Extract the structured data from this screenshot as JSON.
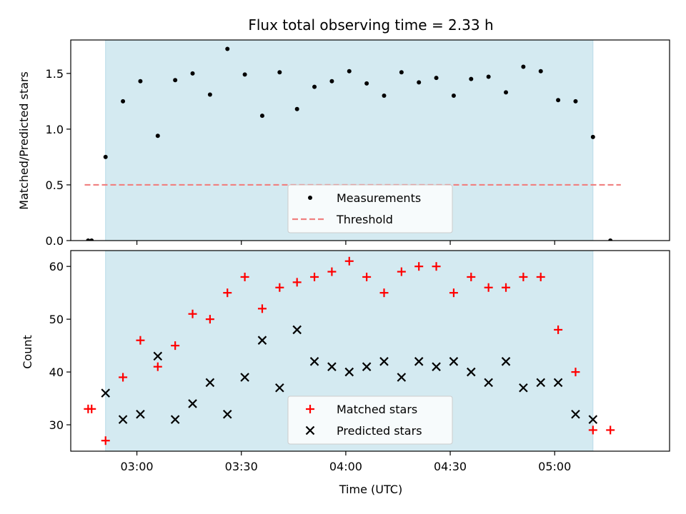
{
  "chart_data": [
    {
      "type": "scatter",
      "title": "Flux total observing time = 2.33 h",
      "xlabel": "",
      "ylabel": "Matched/Predicted stars",
      "xlim": [
        "02:41",
        "05:33"
      ],
      "ylim": [
        0,
        1.8
      ],
      "yticks": [
        "0.0",
        "0.5",
        "1.0",
        "1.5"
      ],
      "xticks": [
        "03:00",
        "03:30",
        "04:00",
        "04:30",
        "05:00"
      ],
      "shaded_span": [
        "02:51",
        "05:11"
      ],
      "shade_color": "#d4eaf1",
      "threshold": {
        "name": "Threshold",
        "value": 0.5,
        "x_range": [
          "02:45",
          "05:19"
        ],
        "color": "#f08080"
      },
      "legend": {
        "placement": "lower center",
        "entries": [
          "Measurements",
          "Threshold"
        ]
      },
      "series": [
        {
          "name": "Measurements",
          "marker": "dot",
          "color": "#000000",
          "x": [
            "02:46",
            "02:47",
            "02:51",
            "02:56",
            "03:01",
            "03:06",
            "03:11",
            "03:16",
            "03:21",
            "03:26",
            "03:31",
            "03:36",
            "03:41",
            "03:46",
            "03:51",
            "03:56",
            "04:01",
            "04:06",
            "04:11",
            "04:16",
            "04:21",
            "04:26",
            "04:31",
            "04:36",
            "04:41",
            "04:46",
            "04:51",
            "04:56",
            "05:01",
            "05:06",
            "05:11",
            "05:16"
          ],
          "y": [
            0.0,
            0.0,
            0.75,
            1.25,
            1.43,
            0.94,
            1.44,
            1.5,
            1.31,
            1.72,
            1.49,
            1.12,
            1.51,
            1.18,
            1.38,
            1.43,
            1.52,
            1.41,
            1.3,
            1.51,
            1.42,
            1.46,
            1.3,
            1.45,
            1.47,
            1.33,
            1.56,
            1.52,
            1.26,
            1.25,
            0.93,
            0.0
          ]
        }
      ]
    },
    {
      "type": "scatter",
      "title": "",
      "xlabel": "Time (UTC)",
      "ylabel": "Count",
      "xlim": [
        "02:41",
        "05:33"
      ],
      "ylim": [
        25,
        63
      ],
      "yticks": [
        "30",
        "40",
        "50",
        "60"
      ],
      "xticks": [
        "03:00",
        "03:30",
        "04:00",
        "04:30",
        "05:00"
      ],
      "shaded_span": [
        "02:51",
        "05:11"
      ],
      "legend": {
        "placement": "lower center",
        "entries": [
          "Matched stars",
          "Predicted stars"
        ]
      },
      "series": [
        {
          "name": "Matched stars",
          "marker": "plus",
          "color": "#ff0000",
          "x": [
            "02:46",
            "02:47",
            "02:51",
            "02:56",
            "03:01",
            "03:06",
            "03:11",
            "03:16",
            "03:21",
            "03:26",
            "03:31",
            "03:36",
            "03:41",
            "03:46",
            "03:51",
            "03:56",
            "04:01",
            "04:06",
            "04:11",
            "04:16",
            "04:21",
            "04:26",
            "04:31",
            "04:36",
            "04:41",
            "04:46",
            "04:51",
            "04:56",
            "05:01",
            "05:06",
            "05:11",
            "05:16"
          ],
          "y": [
            33,
            33,
            27,
            39,
            46,
            41,
            45,
            51,
            50,
            55,
            58,
            52,
            56,
            57,
            58,
            59,
            61,
            58,
            55,
            59,
            60,
            60,
            55,
            58,
            56,
            56,
            58,
            58,
            48,
            40,
            29,
            29
          ]
        },
        {
          "name": "Predicted stars",
          "marker": "x",
          "color": "#000000",
          "x": [
            "02:51",
            "02:56",
            "03:01",
            "03:06",
            "03:11",
            "03:16",
            "03:21",
            "03:26",
            "03:31",
            "03:36",
            "03:41",
            "03:46",
            "03:51",
            "03:56",
            "04:01",
            "04:06",
            "04:11",
            "04:16",
            "04:21",
            "04:26",
            "04:31",
            "04:36",
            "04:41",
            "04:46",
            "04:51",
            "04:56",
            "05:01",
            "05:06",
            "05:11"
          ],
          "y": [
            36,
            31,
            32,
            43,
            31,
            34,
            38,
            32,
            39,
            46,
            37,
            48,
            42,
            41,
            40,
            41,
            42,
            39,
            42,
            41,
            42,
            40,
            38,
            42,
            37,
            38,
            38,
            32,
            31
          ]
        }
      ]
    }
  ]
}
